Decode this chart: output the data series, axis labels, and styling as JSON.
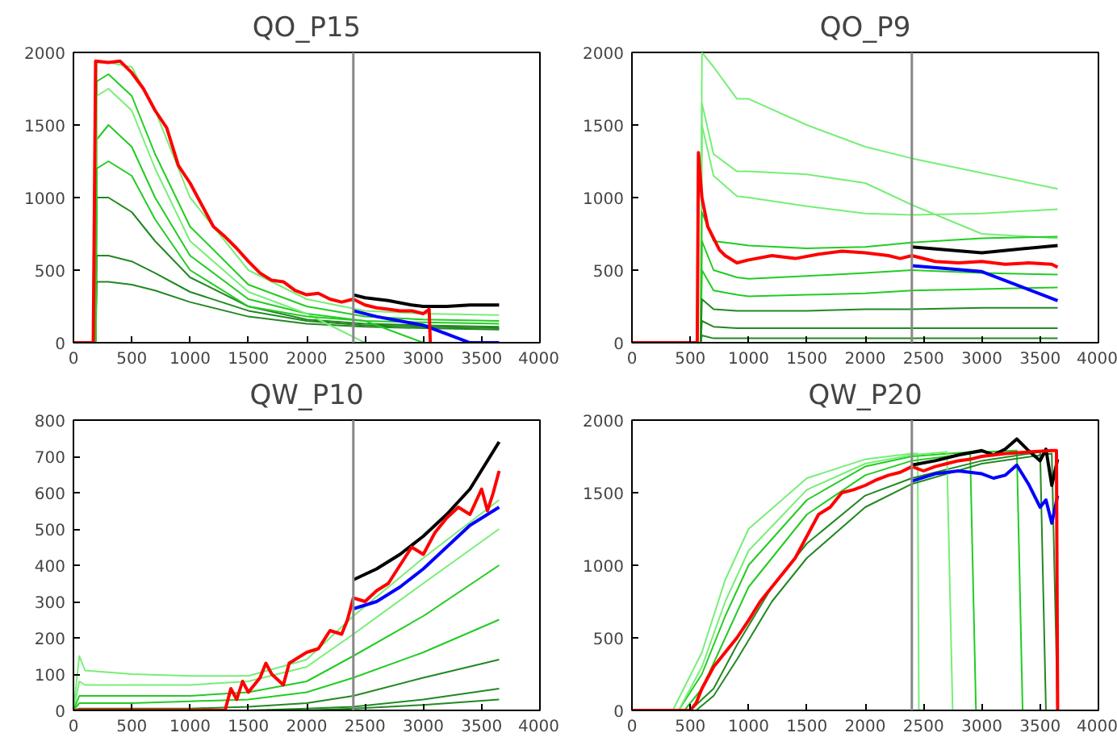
{
  "chart_data": [
    {
      "type": "line",
      "title": "QO_P15",
      "xlim": [
        0,
        4000
      ],
      "ylim": [
        0,
        2000
      ],
      "xticks": [
        0,
        500,
        1000,
        1500,
        2000,
        2500,
        3000,
        3500,
        4000
      ],
      "yticks": [
        0,
        500,
        1000,
        1500,
        2000
      ],
      "grid": false,
      "ref_lines": [
        {
          "axis": "x",
          "value": 2400,
          "color": "#888888"
        }
      ],
      "series": [
        {
          "color": "#77ee77",
          "x": [
            0,
            190,
            200,
            300,
            500,
            700,
            1000,
            1500,
            2000,
            2500,
            3000,
            3650
          ],
          "values": [
            0,
            0,
            1930,
            1930,
            1900,
            1600,
            1000,
            500,
            300,
            220,
            200,
            190
          ]
        },
        {
          "color": "#22cc22",
          "x": [
            0,
            190,
            200,
            300,
            500,
            700,
            1000,
            1500,
            2000,
            2500,
            3000,
            3650
          ],
          "values": [
            0,
            0,
            1800,
            1850,
            1700,
            1300,
            800,
            400,
            250,
            180,
            160,
            150
          ]
        },
        {
          "color": "#22cc22",
          "x": [
            0,
            190,
            200,
            300,
            500,
            700,
            1000,
            1500,
            2000,
            2500,
            3000,
            3650
          ],
          "values": [
            0,
            0,
            1400,
            1500,
            1350,
            1000,
            600,
            300,
            200,
            150,
            140,
            130
          ]
        },
        {
          "color": "#228822",
          "x": [
            0,
            190,
            200,
            300,
            500,
            700,
            1000,
            1500,
            2000,
            2500,
            3000,
            3650
          ],
          "values": [
            0,
            0,
            1000,
            1000,
            900,
            700,
            450,
            250,
            160,
            130,
            120,
            110
          ]
        },
        {
          "color": "#228822",
          "x": [
            0,
            190,
            200,
            300,
            500,
            700,
            1000,
            1500,
            2000,
            2500,
            3000,
            3650
          ],
          "values": [
            0,
            0,
            600,
            600,
            560,
            480,
            350,
            220,
            150,
            120,
            110,
            100
          ]
        },
        {
          "color": "#228822",
          "x": [
            0,
            190,
            200,
            300,
            500,
            700,
            1000,
            1500,
            2000,
            2500,
            3000,
            3650
          ],
          "values": [
            0,
            0,
            420,
            420,
            400,
            360,
            280,
            180,
            130,
            110,
            100,
            90
          ]
        },
        {
          "color": "#77ee77",
          "x": [
            0,
            190,
            200,
            300,
            500,
            700,
            1000,
            1500,
            2000,
            2500,
            3000,
            3650
          ],
          "values": [
            0,
            0,
            1700,
            1750,
            1600,
            1200,
            700,
            350,
            200,
            0,
            0,
            0
          ]
        },
        {
          "color": "#22cc22",
          "x": [
            0,
            190,
            200,
            300,
            500,
            700,
            1000,
            1500,
            2000,
            2500,
            3000,
            3650
          ],
          "values": [
            0,
            0,
            1200,
            1250,
            1150,
            850,
            500,
            250,
            180,
            150,
            0,
            0
          ]
        },
        {
          "color": "#000000",
          "x": [
            2400,
            2500,
            2700,
            2900,
            3000,
            3200,
            3400,
            3650
          ],
          "values": [
            330,
            310,
            290,
            260,
            250,
            250,
            260,
            260
          ]
        },
        {
          "color": "#0000ff",
          "x": [
            2400,
            2600,
            2800,
            3000,
            3200,
            3400,
            3650
          ],
          "values": [
            220,
            180,
            150,
            120,
            60,
            0,
            0
          ]
        },
        {
          "color": "#ff0000",
          "x": [
            0,
            170,
            190,
            300,
            400,
            500,
            600,
            700,
            800,
            900,
            1000,
            1100,
            1200,
            1300,
            1400,
            1500,
            1600,
            1700,
            1800,
            1900,
            2000,
            2100,
            2200,
            2300,
            2400,
            2500,
            2600,
            2700,
            2800,
            2900,
            3000,
            3050,
            3060
          ],
          "values": [
            0,
            0,
            1940,
            1930,
            1940,
            1860,
            1750,
            1600,
            1480,
            1220,
            1100,
            950,
            800,
            730,
            650,
            560,
            480,
            430,
            420,
            360,
            330,
            340,
            300,
            280,
            300,
            260,
            240,
            230,
            220,
            220,
            200,
            230,
            0
          ]
        }
      ]
    },
    {
      "type": "line",
      "title": "QO_P9",
      "xlim": [
        0,
        4000
      ],
      "ylim": [
        0,
        2000
      ],
      "xticks": [
        0,
        500,
        1000,
        1500,
        2000,
        2500,
        3000,
        3500,
        4000
      ],
      "yticks": [
        0,
        500,
        1000,
        1500,
        2000
      ],
      "grid": false,
      "ref_lines": [
        {
          "axis": "x",
          "value": 2400,
          "color": "#888888"
        }
      ],
      "series": [
        {
          "color": "#77ee77",
          "x": [
            0,
            590,
            600,
            700,
            900,
            1000,
            1500,
            2000,
            2400,
            3000,
            3650
          ],
          "values": [
            0,
            0,
            2000,
            1900,
            1680,
            1680,
            1500,
            1350,
            1270,
            1170,
            1060
          ]
        },
        {
          "color": "#77ee77",
          "x": [
            0,
            590,
            600,
            700,
            900,
            1000,
            1500,
            2000,
            2400,
            3000,
            3650
          ],
          "values": [
            0,
            0,
            1650,
            1300,
            1180,
            1180,
            1160,
            1100,
            950,
            750,
            720
          ]
        },
        {
          "color": "#77ee77",
          "x": [
            0,
            590,
            600,
            700,
            900,
            1000,
            1500,
            2000,
            2400,
            3000,
            3650
          ],
          "values": [
            0,
            0,
            1500,
            1150,
            1010,
            1000,
            940,
            890,
            880,
            890,
            920
          ]
        },
        {
          "color": "#22cc22",
          "x": [
            0,
            590,
            600,
            700,
            900,
            1000,
            1500,
            2000,
            2400,
            3000,
            3650
          ],
          "values": [
            0,
            0,
            900,
            700,
            680,
            670,
            650,
            660,
            690,
            720,
            730
          ]
        },
        {
          "color": "#22cc22",
          "x": [
            0,
            590,
            600,
            700,
            900,
            1000,
            1500,
            2000,
            2400,
            3000,
            3650
          ],
          "values": [
            0,
            0,
            700,
            500,
            450,
            440,
            460,
            480,
            500,
            480,
            470
          ]
        },
        {
          "color": "#22cc22",
          "x": [
            0,
            590,
            600,
            700,
            900,
            1000,
            1500,
            2000,
            2400,
            3000,
            3650
          ],
          "values": [
            0,
            0,
            500,
            360,
            330,
            320,
            330,
            340,
            360,
            370,
            380
          ]
        },
        {
          "color": "#228822",
          "x": [
            0,
            590,
            600,
            700,
            900,
            1000,
            1500,
            2000,
            2400,
            3000,
            3650
          ],
          "values": [
            0,
            0,
            300,
            230,
            220,
            220,
            220,
            230,
            230,
            240,
            240
          ]
        },
        {
          "color": "#228822",
          "x": [
            0,
            590,
            600,
            700,
            900,
            1000,
            1500,
            2000,
            2400,
            3000,
            3650
          ],
          "values": [
            0,
            0,
            150,
            110,
            100,
            100,
            100,
            100,
            100,
            100,
            100
          ]
        },
        {
          "color": "#228822",
          "x": [
            0,
            590,
            600,
            700,
            900,
            1000,
            1500,
            2000,
            2400,
            3000,
            3650
          ],
          "values": [
            0,
            0,
            50,
            30,
            30,
            30,
            30,
            30,
            30,
            30,
            30
          ]
        },
        {
          "color": "#000000",
          "x": [
            2400,
            3000,
            3650
          ],
          "values": [
            660,
            620,
            670
          ]
        },
        {
          "color": "#0000ff",
          "x": [
            2400,
            3000,
            3650
          ],
          "values": [
            530,
            490,
            290
          ]
        },
        {
          "color": "#ff0000",
          "x": [
            0,
            560,
            570,
            600,
            650,
            700,
            750,
            800,
            900,
            1000,
            1200,
            1400,
            1600,
            1800,
            2000,
            2200,
            2300,
            2400,
            2600,
            2800,
            3000,
            3200,
            3400,
            3600,
            3650
          ],
          "values": [
            0,
            0,
            1310,
            1000,
            800,
            720,
            640,
            600,
            550,
            570,
            600,
            580,
            610,
            630,
            620,
            600,
            580,
            600,
            560,
            550,
            560,
            540,
            550,
            540,
            520
          ]
        }
      ]
    },
    {
      "type": "line",
      "title": "QW_P10",
      "xlim": [
        0,
        4000
      ],
      "ylim": [
        0,
        800
      ],
      "xticks": [
        0,
        500,
        1000,
        1500,
        2000,
        2500,
        3000,
        3500,
        4000
      ],
      "yticks": [
        0,
        100,
        200,
        300,
        400,
        500,
        600,
        700,
        800
      ],
      "grid": false,
      "ref_lines": [
        {
          "axis": "x",
          "value": 2400,
          "color": "#888888"
        }
      ],
      "series": [
        {
          "color": "#77ee77",
          "x": [
            0,
            50,
            100,
            500,
            1000,
            1500,
            2000,
            2400,
            3000,
            3650
          ],
          "values": [
            0,
            150,
            110,
            100,
            95,
            95,
            140,
            260,
            420,
            580
          ]
        },
        {
          "color": "#77ee77",
          "x": [
            0,
            50,
            100,
            500,
            1000,
            1500,
            2000,
            2400,
            3000,
            3650
          ],
          "values": [
            0,
            80,
            70,
            70,
            70,
            80,
            120,
            210,
            350,
            500
          ]
        },
        {
          "color": "#22cc22",
          "x": [
            0,
            50,
            100,
            500,
            1000,
            1500,
            2000,
            2400,
            3000,
            3650
          ],
          "values": [
            0,
            40,
            40,
            40,
            40,
            50,
            80,
            150,
            260,
            400
          ]
        },
        {
          "color": "#22cc22",
          "x": [
            0,
            50,
            100,
            500,
            1000,
            1500,
            2000,
            2400,
            3000,
            3650
          ],
          "values": [
            0,
            20,
            20,
            20,
            25,
            30,
            50,
            90,
            160,
            250
          ]
        },
        {
          "color": "#228822",
          "x": [
            0,
            50,
            100,
            500,
            1000,
            1500,
            2000,
            2400,
            3000,
            3650
          ],
          "values": [
            0,
            5,
            5,
            5,
            5,
            10,
            20,
            40,
            90,
            140
          ]
        },
        {
          "color": "#228822",
          "x": [
            0,
            50,
            100,
            500,
            1000,
            1500,
            2000,
            2400,
            3000,
            3650
          ],
          "values": [
            0,
            0,
            0,
            0,
            0,
            0,
            5,
            10,
            30,
            60
          ]
        },
        {
          "color": "#228822",
          "x": [
            0,
            50,
            100,
            500,
            1000,
            1500,
            2000,
            2400,
            3000,
            3650
          ],
          "values": [
            0,
            0,
            0,
            0,
            0,
            0,
            0,
            5,
            15,
            30
          ]
        },
        {
          "color": "#000000",
          "x": [
            2400,
            2600,
            2800,
            3000,
            3200,
            3400,
            3650
          ],
          "values": [
            360,
            390,
            430,
            480,
            540,
            610,
            740
          ]
        },
        {
          "color": "#0000ff",
          "x": [
            2400,
            2600,
            2800,
            3000,
            3200,
            3400,
            3650
          ],
          "values": [
            280,
            300,
            340,
            390,
            450,
            510,
            560
          ]
        },
        {
          "color": "#ff0000",
          "x": [
            0,
            1300,
            1350,
            1400,
            1450,
            1500,
            1600,
            1650,
            1700,
            1800,
            1850,
            1900,
            2000,
            2100,
            2200,
            2300,
            2350,
            2400,
            2500,
            2600,
            2700,
            2800,
            2900,
            3000,
            3100,
            3200,
            3300,
            3400,
            3500,
            3550,
            3600,
            3650
          ],
          "values": [
            0,
            0,
            60,
            30,
            80,
            50,
            90,
            130,
            100,
            70,
            130,
            140,
            160,
            170,
            220,
            210,
            250,
            310,
            300,
            330,
            350,
            400,
            450,
            430,
            490,
            530,
            560,
            540,
            610,
            550,
            600,
            660
          ]
        }
      ]
    },
    {
      "type": "line",
      "title": "QW_P20",
      "xlim": [
        0,
        4000
      ],
      "ylim": [
        0,
        2000
      ],
      "xticks": [
        0,
        500,
        1000,
        1500,
        2000,
        2500,
        3000,
        3500,
        4000
      ],
      "yticks": [
        0,
        500,
        1000,
        1500,
        2000
      ],
      "grid": false,
      "ref_lines": [
        {
          "axis": "x",
          "value": 2400,
          "color": "#888888"
        }
      ],
      "series": [
        {
          "color": "#77ee77",
          "x": [
            0,
            350,
            600,
            800,
            1000,
            1500,
            2000,
            2400,
            2450,
            2460
          ],
          "values": [
            0,
            0,
            400,
            900,
            1250,
            1600,
            1730,
            1770,
            1770,
            0
          ]
        },
        {
          "color": "#22cc22",
          "x": [
            0,
            400,
            600,
            800,
            1000,
            1500,
            2000,
            2400,
            2900,
            2950
          ],
          "values": [
            0,
            0,
            250,
            650,
            1000,
            1450,
            1680,
            1750,
            1780,
            0
          ]
        },
        {
          "color": "#22cc22",
          "x": [
            0,
            450,
            600,
            800,
            1000,
            1500,
            2000,
            2400,
            3000,
            3300,
            3350
          ],
          "values": [
            0,
            0,
            150,
            500,
            850,
            1350,
            1620,
            1720,
            1780,
            1790,
            0
          ]
        },
        {
          "color": "#228822",
          "x": [
            0,
            500,
            700,
            900,
            1200,
            1500,
            2000,
            2400,
            3000,
            3500,
            3550
          ],
          "values": [
            0,
            0,
            150,
            450,
            850,
            1150,
            1480,
            1600,
            1720,
            1780,
            0
          ]
        },
        {
          "color": "#228822",
          "x": [
            0,
            550,
            700,
            900,
            1200,
            1500,
            2000,
            2400,
            3000,
            3600,
            3650
          ],
          "values": [
            0,
            0,
            100,
            350,
            750,
            1050,
            1400,
            1560,
            1700,
            1770,
            0
          ]
        },
        {
          "color": "#77ee77",
          "x": [
            0,
            400,
            600,
            800,
            1000,
            1500,
            2000,
            2400,
            2700,
            2750
          ],
          "values": [
            0,
            0,
            300,
            750,
            1100,
            1520,
            1700,
            1760,
            1780,
            0
          ]
        },
        {
          "color": "#000000",
          "x": [
            2400,
            2600,
            2800,
            3000,
            3100,
            3200,
            3300,
            3400,
            3500,
            3550,
            3600,
            3650
          ],
          "values": [
            1690,
            1720,
            1760,
            1790,
            1760,
            1800,
            1870,
            1790,
            1720,
            1800,
            1550,
            1730
          ]
        },
        {
          "color": "#0000ff",
          "x": [
            2400,
            2600,
            2800,
            3000,
            3100,
            3200,
            3300,
            3400,
            3500,
            3550,
            3600,
            3650
          ],
          "values": [
            1580,
            1630,
            1650,
            1630,
            1600,
            1620,
            1690,
            1560,
            1400,
            1450,
            1290,
            1480
          ]
        },
        {
          "color": "#ff0000",
          "x": [
            0,
            500,
            550,
            600,
            700,
            800,
            900,
            1000,
            1100,
            1200,
            1300,
            1400,
            1500,
            1600,
            1700,
            1800,
            1900,
            2000,
            2100,
            2200,
            2300,
            2400,
            2500,
            2600,
            2700,
            2800,
            2900,
            3000,
            3200,
            3400,
            3600,
            3640,
            3650
          ],
          "values": [
            0,
            0,
            50,
            150,
            300,
            400,
            500,
            620,
            750,
            850,
            950,
            1050,
            1200,
            1350,
            1400,
            1500,
            1520,
            1550,
            1590,
            1620,
            1640,
            1680,
            1650,
            1680,
            1700,
            1720,
            1730,
            1750,
            1770,
            1780,
            1790,
            1790,
            0
          ]
        }
      ]
    }
  ]
}
